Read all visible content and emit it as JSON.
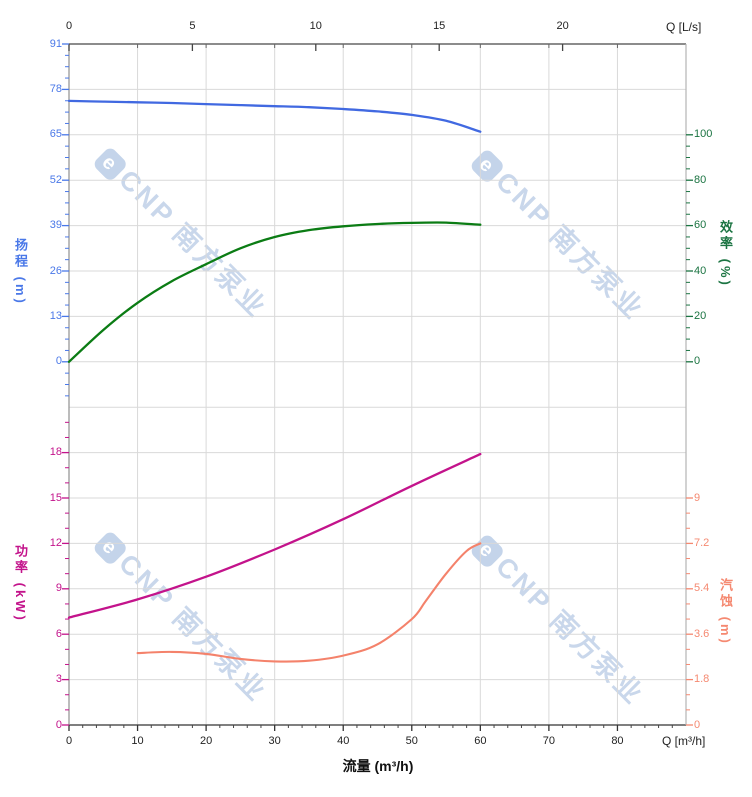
{
  "watermark": {
    "logo": "e",
    "text": "CNP 南方泵业"
  },
  "labels": {
    "x_top_unit": "Q [L/s]",
    "x_bottom_unit": "Q [m³/h]",
    "x_bottom_title": "流量 (m³/h)",
    "head_axis": "扬程 (m)",
    "efficiency_axis": "效率 (%)",
    "power_axis": "功率 (kW)",
    "npsh_axis": "汽蚀 (m)"
  },
  "chart_data": {
    "type": "line",
    "title": "",
    "x_bottom": {
      "title": "流量 (m³/h)",
      "unit": "Q [m³/h]",
      "range": [
        0,
        90
      ],
      "major_ticks": [
        0,
        10,
        20,
        30,
        40,
        50,
        60,
        70,
        80
      ],
      "minor_tick_step": 2
    },
    "x_top": {
      "unit": "Q [L/s]",
      "range": [
        0,
        25
      ],
      "major_ticks": [
        0,
        5,
        10,
        15,
        20
      ]
    },
    "grid": "on",
    "y_axes": {
      "head": {
        "title": "扬程 (m)",
        "side": "left",
        "color": "#4169E1",
        "label_color": "#4A78E8",
        "ticks": [
          91,
          78,
          65,
          52,
          39,
          26,
          13,
          0
        ]
      },
      "efficiency": {
        "title": "效率 (%)",
        "side": "right",
        "color": "#0B7C14",
        "label_color": "#1B7442",
        "ticks": [
          100,
          80,
          60,
          40,
          20,
          0
        ]
      },
      "power": {
        "title": "功率 (kW)",
        "side": "left",
        "color": "#C3138B",
        "label_color": "#C3138B",
        "ticks": [
          18,
          15,
          12,
          9,
          6,
          3,
          0
        ]
      },
      "npsh": {
        "title": "汽蚀 (m)",
        "side": "right",
        "color": "#F4826B",
        "label_color": "#F58971",
        "ticks": [
          9,
          7.2,
          5.4,
          3.6,
          1.8,
          0
        ]
      }
    },
    "series": [
      {
        "name": "head",
        "axis": "head",
        "color": "#4169E1",
        "width": 2.3,
        "x": [
          0,
          5,
          10,
          15,
          20,
          25,
          30,
          35,
          40,
          45,
          50,
          55,
          60
        ],
        "y": [
          74.7,
          74.5,
          74.3,
          74.1,
          73.8,
          73.5,
          73.2,
          72.9,
          72.4,
          71.7,
          70.7,
          69.0,
          65.9
        ]
      },
      {
        "name": "efficiency",
        "axis": "efficiency",
        "color": "#0B7C14",
        "width": 2.3,
        "x": [
          0,
          5,
          10,
          15,
          20,
          25,
          30,
          35,
          40,
          45,
          50,
          55,
          60
        ],
        "y": [
          0,
          14,
          26,
          35.5,
          43,
          50,
          55,
          58,
          59.7,
          60.7,
          61.2,
          61.3,
          60.4
        ]
      },
      {
        "name": "power",
        "axis": "power",
        "color": "#C3138B",
        "width": 2.3,
        "x": [
          0,
          10,
          20,
          30,
          40,
          50,
          60
        ],
        "y": [
          7.1,
          8.3,
          9.8,
          11.6,
          13.6,
          15.8,
          17.9
        ]
      },
      {
        "name": "npsh",
        "axis": "npsh",
        "color": "#F4826B",
        "width": 2.1,
        "x": [
          10,
          15,
          20,
          25,
          30,
          35,
          40,
          45,
          50,
          52,
          55,
          58,
          60
        ],
        "y": [
          2.85,
          2.9,
          2.82,
          2.62,
          2.52,
          2.55,
          2.75,
          3.2,
          4.2,
          4.9,
          6.0,
          6.9,
          7.2
        ]
      }
    ]
  }
}
